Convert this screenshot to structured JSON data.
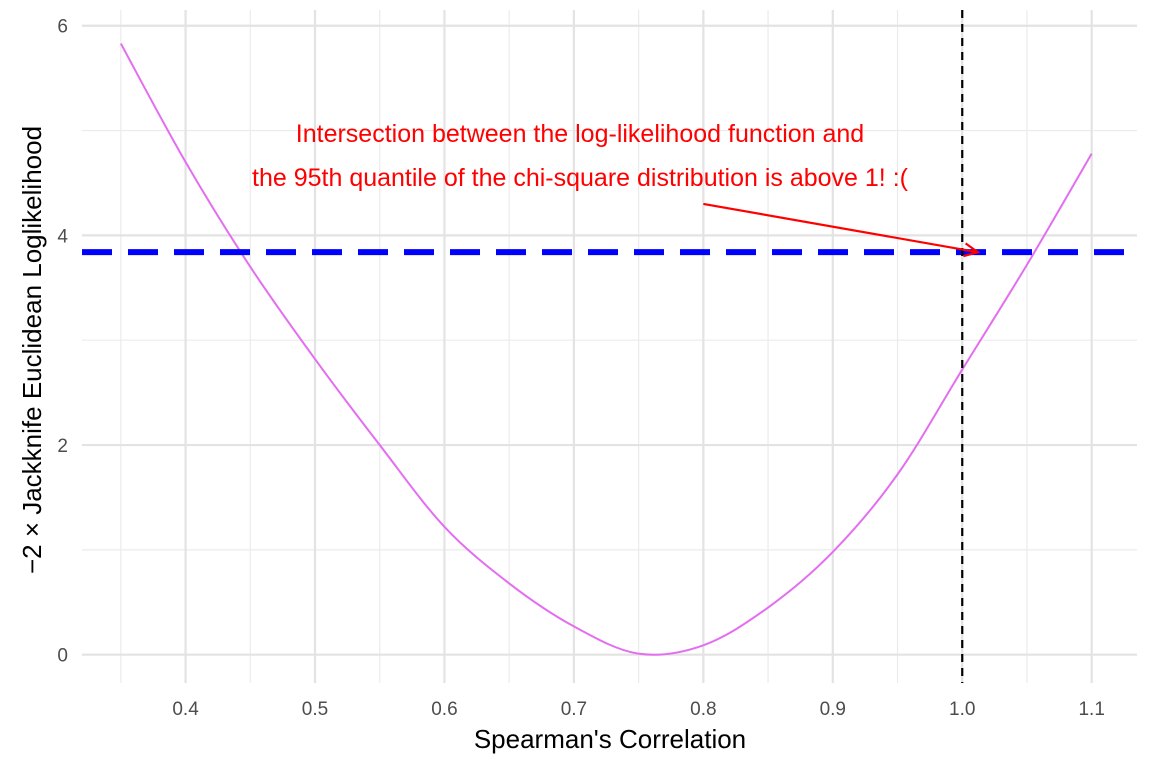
{
  "chart_data": {
    "type": "line",
    "xlabel": "Spearman's Correlation",
    "ylabel": "−2 × Jackknife Euclidean Loglikelihood",
    "xlim": [
      0.32,
      1.135
    ],
    "ylim": [
      -0.27,
      6.15
    ],
    "x_ticks": [
      0.4,
      0.5,
      0.6,
      0.7,
      0.8,
      0.9,
      1.0,
      1.1
    ],
    "x_tick_labels": [
      "0.4",
      "0.5",
      "0.6",
      "0.7",
      "0.8",
      "0.9",
      "1.0",
      "1.1"
    ],
    "y_ticks": [
      0,
      2,
      4,
      6
    ],
    "y_tick_labels": [
      "0",
      "2",
      "4",
      "6"
    ],
    "grid": true,
    "series": [
      {
        "color": "#e36ef0",
        "x": [
          0.35,
          0.4,
          0.45,
          0.5,
          0.55,
          0.6,
          0.65,
          0.7,
          0.75,
          0.8,
          0.85,
          0.9,
          0.95,
          1.0,
          1.05,
          1.1
        ],
        "y": [
          5.83,
          4.7,
          3.7,
          2.82,
          2.0,
          1.22,
          0.68,
          0.27,
          0.01,
          0.09,
          0.45,
          0.98,
          1.72,
          2.72,
          3.72,
          4.78
        ]
      }
    ],
    "hlines": [
      {
        "y": 3.84,
        "color": "#0000ff",
        "style": "dashed"
      }
    ],
    "vlines": [
      {
        "x": 1.0,
        "color": "#000000",
        "style": "dashed"
      }
    ],
    "annotation": {
      "lines": [
        "Intersection between the log-likelihood function and",
        "the 95th quantile of the chi-square distribution is above 1! :("
      ],
      "color": "#ff0000",
      "arrow_from": {
        "x": 0.8,
        "y": 4.3
      },
      "arrow_to": {
        "x": 1.012,
        "y": 3.84
      }
    }
  }
}
